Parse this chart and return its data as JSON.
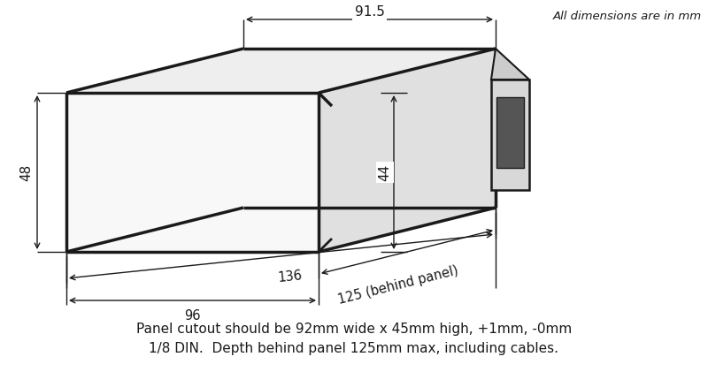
{
  "bg_color": "#ffffff",
  "line_color": "#1a1a1a",
  "text_color": "#1a1a1a",
  "note_line1": "Panel cutout should be 92mm wide x 45mm high, +1mm, -0mm",
  "note_line2": "1/8 DIN.  Depth behind panel 125mm max, including cables.",
  "top_note": "All dimensions are in mm",
  "dim_91_5": "91.5",
  "dim_48": "48",
  "dim_44": "44",
  "dim_125": "125 (behind panel)",
  "dim_136": "136",
  "dim_96": "96",
  "figsize": [
    8.0,
    4.21
  ],
  "dpi": 100
}
